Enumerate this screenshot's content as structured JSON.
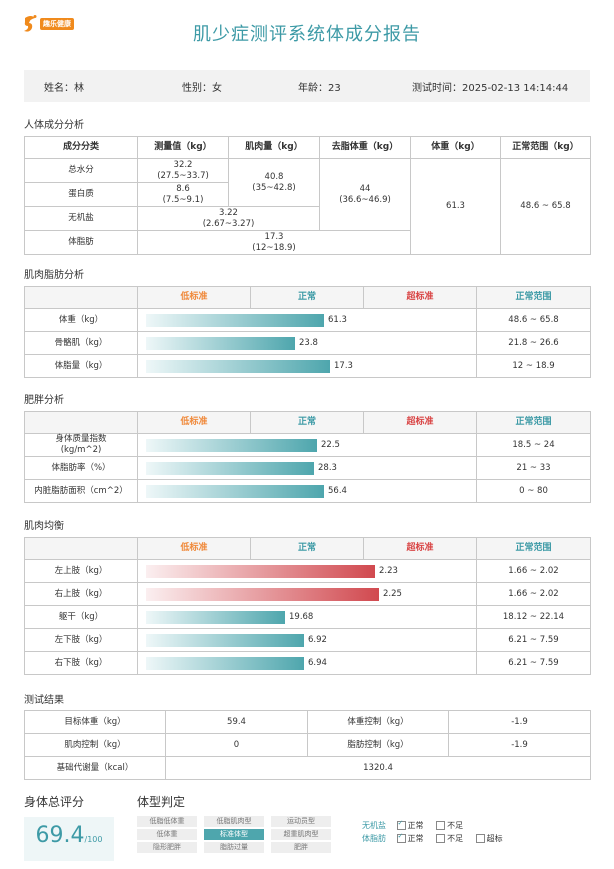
{
  "header": {
    "logo_text": "趣乐健康",
    "title": "肌少症测评系统体成分报告"
  },
  "info": {
    "name": "姓名：林",
    "gender": "性别：女",
    "age": "年龄：23",
    "test_time": "测试时间：2025-02-13 14:14:44"
  },
  "comp": {
    "section": "人体成分分析",
    "headers": [
      "成分分类",
      "测量值（kg）",
      "肌肉量（kg）",
      "去脂体重（kg）",
      "体重（kg）",
      "正常范围（kg）"
    ],
    "water_label": "总水分",
    "water_val": "32.2",
    "water_range": "(27.5~33.7)",
    "protein_label": "蛋白质",
    "protein_val": "8.6",
    "protein_range": "(7.5~9.1)",
    "muscle_val": "40.8",
    "muscle_range": "(35~42.8)",
    "mineral_label": "无机盐",
    "mineral_val": "3.22",
    "mineral_range": "(2.67~3.27)",
    "ffm_val": "44",
    "ffm_range": "(36.6~46.9)",
    "weight_val": "61.3",
    "normal_range": "48.6 ~ 65.8",
    "fat_label": "体脂肪",
    "fat_val": "17.3",
    "fat_range": "(12~18.9)"
  },
  "scale_headers": {
    "low": "低标准",
    "normal": "正常",
    "high": "超标准",
    "range": "正常范围"
  },
  "muscle_fat": {
    "section": "肌肉脂肪分析",
    "rows": [
      {
        "label": "体重（kg）",
        "value": "61.3",
        "range": "48.6 ~ 65.8",
        "fill": 0.55,
        "color": "g"
      },
      {
        "label": "骨骼肌（kg）",
        "value": "23.8",
        "range": "21.8 ~ 26.6",
        "fill": 0.46,
        "color": "g"
      },
      {
        "label": "体脂量（kg）",
        "value": "17.3",
        "range": "12 ~ 18.9",
        "fill": 0.57,
        "color": "g"
      }
    ]
  },
  "obesity": {
    "section": "肥胖分析",
    "rows": [
      {
        "label": "身体质量指数\n(kg/m^2)",
        "value": "22.5",
        "range": "18.5 ~ 24",
        "fill": 0.53,
        "color": "g"
      },
      {
        "label": "体脂肪率（%）",
        "value": "28.3",
        "range": "21 ~ 33",
        "fill": 0.52,
        "color": "g"
      },
      {
        "label": "内脏脂肪面积（cm^2）",
        "value": "56.4",
        "range": "0 ~ 80",
        "fill": 0.55,
        "color": "g"
      }
    ]
  },
  "balance": {
    "section": "肌肉均衡",
    "rows": [
      {
        "label": "左上肢（kg）",
        "value": "2.23",
        "range": "1.66 ~ 2.02",
        "fill": 0.71,
        "color": "r"
      },
      {
        "label": "右上肢（kg）",
        "value": "2.25",
        "range": "1.66 ~ 2.02",
        "fill": 0.72,
        "color": "r"
      },
      {
        "label": "躯干（kg）",
        "value": "19.68",
        "range": "18.12 ~ 22.14",
        "fill": 0.43,
        "color": "g"
      },
      {
        "label": "左下肢（kg）",
        "value": "6.92",
        "range": "6.21 ~ 7.59",
        "fill": 0.49,
        "color": "g"
      },
      {
        "label": "右下肢（kg）",
        "value": "6.94",
        "range": "6.21 ~ 7.59",
        "fill": 0.49,
        "color": "g"
      }
    ]
  },
  "results": {
    "section": "测试结果",
    "target_label": "目标体重（kg）",
    "target_val": "59.4",
    "weight_ctrl_label": "体重控制（kg）",
    "weight_ctrl_val": "-1.9",
    "muscle_ctrl_label": "肌肉控制（kg）",
    "muscle_ctrl_val": "0",
    "fat_ctrl_label": "脂肪控制（kg）",
    "fat_ctrl_val": "-1.9",
    "bmr_label": "基础代谢量（kcal）",
    "bmr_val": "1320.4"
  },
  "score": {
    "label": "身体总评分",
    "value": "69.4",
    "denom": "/100"
  },
  "body_type": {
    "label": "体型判定",
    "chips": [
      {
        "text": "低脂低体重",
        "selected": false
      },
      {
        "text": "低脂肌肉型",
        "selected": false
      },
      {
        "text": "运动员型",
        "selected": false
      },
      {
        "text": "低体重",
        "selected": false
      },
      {
        "text": "标准体型",
        "selected": true
      },
      {
        "text": "超重肌肉型",
        "selected": false
      },
      {
        "text": "隐形肥胖",
        "selected": false
      },
      {
        "text": "脂肪过量",
        "selected": false
      },
      {
        "text": "肥胖",
        "selected": false
      }
    ]
  },
  "legend": {
    "mineral_label": "无机盐",
    "fat_label": "体脂肪",
    "normal": "正常",
    "insufficient": "不足",
    "excess": "超标"
  },
  "colors": {
    "accent": "#3d9aa6",
    "low": "#f08a3c",
    "high": "#d94545"
  }
}
